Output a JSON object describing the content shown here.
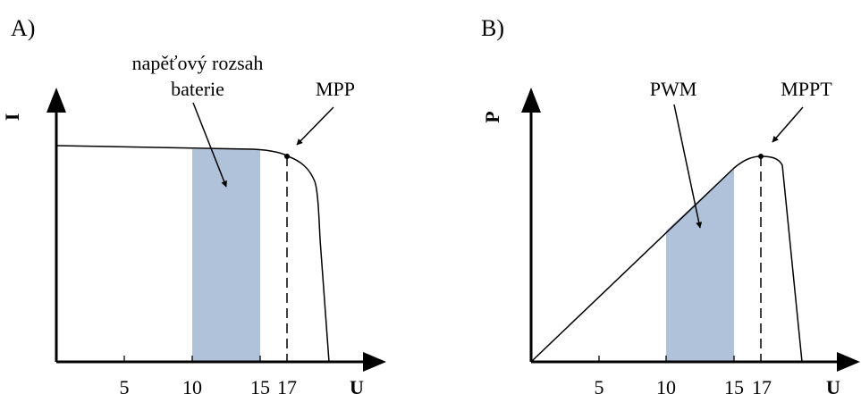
{
  "colors": {
    "shade": "#afc2d9",
    "ink": "#000000",
    "background": "#ffffff"
  },
  "panels": [
    {
      "id": "A",
      "label": "A)",
      "y_axis_label": "I",
      "x_axis_label": "U",
      "ticks": [
        "5",
        "10",
        "15",
        "17"
      ],
      "annotations": {
        "range_line1": "napěťový rozsah",
        "range_line2": "baterie",
        "point": "MPP"
      }
    },
    {
      "id": "B",
      "label": "B)",
      "y_axis_label": "P",
      "x_axis_label": "U",
      "ticks": [
        "5",
        "10",
        "15",
        "17"
      ],
      "annotations": {
        "pwm": "PWM",
        "point": "MPPT"
      }
    }
  ]
}
